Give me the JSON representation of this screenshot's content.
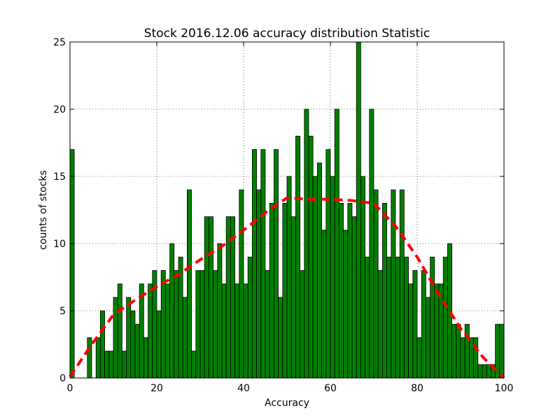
{
  "chart_data": {
    "type": "bar",
    "title": "Stock 2016.12.06 accuracy distribution Statistic",
    "xlabel": "Accuracy",
    "ylabel": "counts of stocks",
    "xlim": [
      0,
      100
    ],
    "ylim": [
      0,
      25
    ],
    "xticks": [
      0,
      20,
      40,
      60,
      80,
      100
    ],
    "yticks": [
      0,
      5,
      10,
      15,
      20,
      25
    ],
    "grid": true,
    "bar_color": "#007f00",
    "bar_edge_color": "#000000",
    "fit_line_color": "#ff0000",
    "bin_width": 0.99,
    "x": [
      0,
      1,
      2,
      3,
      4,
      5,
      6,
      7,
      8,
      9,
      10,
      11,
      12,
      13,
      14,
      15,
      16,
      17,
      18,
      19,
      20,
      21,
      22,
      23,
      24,
      25,
      26,
      27,
      28,
      29,
      30,
      31,
      32,
      33,
      34,
      35,
      36,
      37,
      38,
      39,
      40,
      41,
      42,
      43,
      44,
      45,
      46,
      47,
      48,
      49,
      50,
      51,
      52,
      53,
      54,
      55,
      56,
      57,
      58,
      59,
      60,
      61,
      62,
      63,
      64,
      65,
      66,
      67,
      68,
      69,
      70,
      71,
      72,
      73,
      74,
      75,
      76,
      77,
      78,
      79,
      80,
      81,
      82,
      83,
      84,
      85,
      86,
      87,
      88,
      89,
      90,
      91,
      92,
      93,
      94,
      95,
      96,
      97,
      98,
      99
    ],
    "values": [
      17,
      0,
      0,
      0,
      3,
      0,
      3,
      5,
      2,
      2,
      6,
      7,
      2,
      6,
      5,
      4,
      7,
      3,
      7,
      8,
      5,
      8,
      7,
      10,
      8,
      9,
      6,
      14,
      2,
      8,
      8,
      12,
      12,
      8,
      10,
      7,
      12,
      12,
      7,
      14,
      7,
      9,
      17,
      14,
      17,
      8,
      13,
      17,
      6,
      13,
      15,
      12,
      18,
      8,
      20,
      18,
      15,
      16,
      11,
      17,
      15,
      20,
      13,
      11,
      13,
      12,
      25,
      15,
      9,
      20,
      14,
      8,
      13,
      9,
      14,
      9,
      14,
      9,
      7,
      8,
      3,
      8,
      6,
      9,
      7,
      7,
      9,
      10,
      4,
      4,
      3,
      4,
      3,
      3,
      1,
      1,
      1,
      1,
      4,
      4
    ],
    "fit_line": {
      "style": "dashed",
      "x": [
        0,
        5,
        10,
        15,
        20,
        25,
        30,
        35,
        40,
        45,
        50,
        55,
        60,
        65,
        70,
        75,
        80,
        85,
        90,
        95,
        100
      ],
      "y": [
        0.1,
        2.5,
        4.7,
        5.8,
        6.8,
        7.7,
        8.8,
        9.8,
        11.0,
        12.3,
        13.4,
        13.3,
        13.3,
        13.2,
        13.0,
        11.3,
        9.0,
        6.2,
        3.7,
        1.6,
        0.0
      ]
    }
  }
}
